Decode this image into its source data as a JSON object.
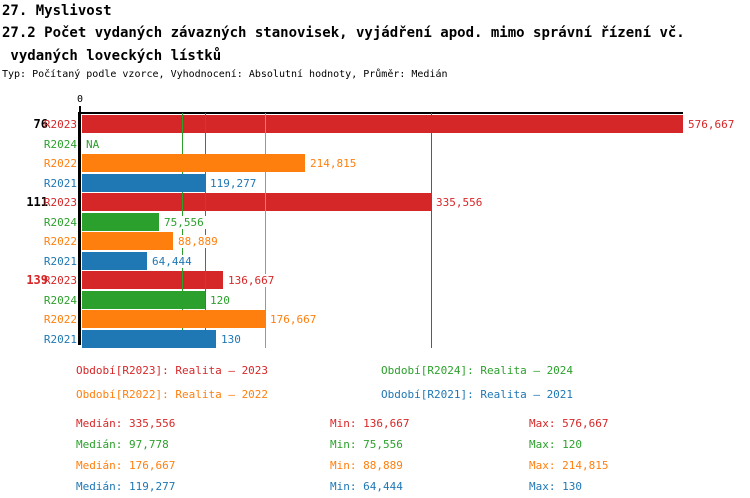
{
  "chart_data": {
    "type": "bar",
    "orientation": "horizontal",
    "title": "27. Myslivost",
    "subtitle_line1": "27.2 Počet vydaných závazných stanovisek, vyjádření apod. mimo správní řízení vč.",
    "subtitle_line2": " vydaných loveckých lístků",
    "meta_line": "Typ: Počítaný podle vzorce, Vyhodnocení: Absolutní hodnoty, Průměr: Medián",
    "axis": {
      "origin_tick_label": "0",
      "min_value": 0,
      "max_value": 576.667,
      "grid": false
    },
    "series_order": [
      "R2023",
      "R2024",
      "R2022",
      "R2021"
    ],
    "series_colors": {
      "R2023": "#d62728",
      "R2024": "#2ca02c",
      "R2022": "#ff7f0e",
      "R2021": "#1f77b4"
    },
    "text_black": "#000000",
    "groups": [
      {
        "label": "76",
        "label_color": "#000000",
        "rows": [
          {
            "period": "R2023",
            "value": 576.667,
            "label": "576,667"
          },
          {
            "period": "R2024",
            "value": null,
            "label": "NA"
          },
          {
            "period": "R2022",
            "value": 214.815,
            "label": "214,815"
          },
          {
            "period": "R2021",
            "value": 119.277,
            "label": "119,277"
          }
        ]
      },
      {
        "label": "111",
        "label_color": "#000000",
        "rows": [
          {
            "period": "R2023",
            "value": 335.556,
            "label": "335,556"
          },
          {
            "period": "R2024",
            "value": 75.556,
            "label": "75,556"
          },
          {
            "period": "R2022",
            "value": 88.889,
            "label": "88,889"
          },
          {
            "period": "R2021",
            "value": 64.444,
            "label": "64,444"
          }
        ]
      },
      {
        "label": "139",
        "label_color": "#d62728",
        "rows": [
          {
            "period": "R2023",
            "value": 136.667,
            "label": "136,667"
          },
          {
            "period": "R2024",
            "value": 120,
            "label": "120"
          },
          {
            "period": "R2022",
            "value": 176.667,
            "label": "176,667"
          },
          {
            "period": "R2021",
            "value": 130,
            "label": "130"
          }
        ]
      }
    ],
    "median_lines": [
      {
        "series": "R2023",
        "value": 335.556
      },
      {
        "series": "R2024",
        "value": 97.778
      },
      {
        "series": "R2022",
        "value": 176.667
      },
      {
        "series": "R2021",
        "value": 119.277
      }
    ],
    "legend": {
      "items": [
        {
          "series": "R2023",
          "text": "Období[R2023]: Realita – 2023"
        },
        {
          "series": "R2024",
          "text": "Období[R2024]: Realita – 2024"
        },
        {
          "series": "R2022",
          "text": "Období[R2022]: Realita – 2022"
        },
        {
          "series": "R2021",
          "text": "Období[R2021]: Realita – 2021"
        }
      ]
    },
    "stats": {
      "rows": [
        {
          "series": "R2023",
          "cells": [
            "Medián: 335,556",
            "Min: 136,667",
            "Max: 576,667"
          ]
        },
        {
          "series": "R2024",
          "cells": [
            "Medián: 97,778",
            "Min: 75,556",
            "Max: 120"
          ]
        },
        {
          "series": "R2022",
          "cells": [
            "Medián: 176,667",
            "Min: 88,889",
            "Max: 214,815"
          ]
        },
        {
          "series": "R2021",
          "cells": [
            "Medián: 119,277",
            "Min: 64,444",
            "Max: 130"
          ]
        }
      ]
    }
  }
}
